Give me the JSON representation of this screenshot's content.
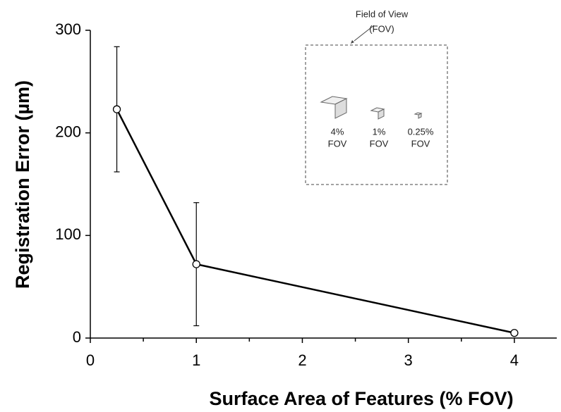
{
  "chart_data": {
    "type": "line",
    "x_label": "Surface Area of Features (% FOV)",
    "y_label": "Registration Error (µm)",
    "x": [
      0.25,
      1,
      4
    ],
    "values": [
      223,
      72,
      5
    ],
    "errors": [
      61,
      60,
      null
    ],
    "color": "#000000",
    "xlim": [
      0,
      4.4
    ],
    "xticks": [
      0,
      1,
      2,
      3,
      4
    ],
    "xminorticks": [
      0.5,
      1.5,
      2.5,
      3.5
    ],
    "ylim": [
      0,
      300
    ],
    "yticks": [
      0,
      100,
      200,
      300
    ],
    "inset": {
      "title_lines": [
        "Field of View",
        "(FOV)"
      ],
      "labels": [
        [
          "4%",
          "FOV"
        ],
        [
          "1%",
          "FOV"
        ],
        [
          "0.25%",
          "FOV"
        ]
      ]
    }
  }
}
